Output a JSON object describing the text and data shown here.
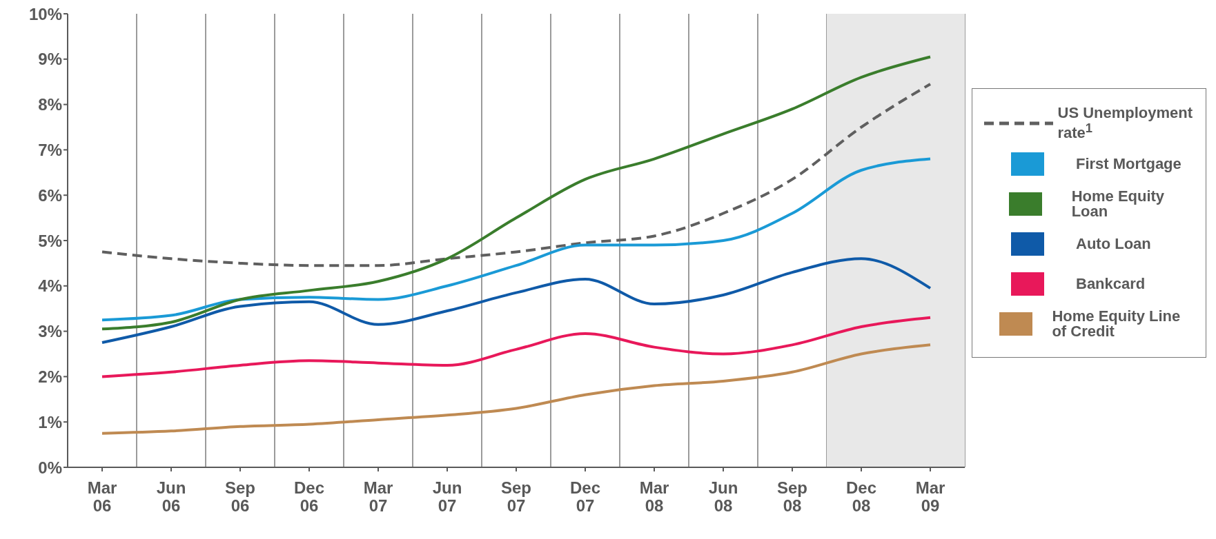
{
  "chart_data": {
    "type": "line",
    "categories": [
      "Mar 06",
      "Jun 06",
      "Sep 06",
      "Dec 06",
      "Mar 07",
      "Jun 07",
      "Sep 07",
      "Dec 07",
      "Mar 08",
      "Jun 08",
      "Sep 08",
      "Dec 08",
      "Mar 09"
    ],
    "series": [
      {
        "name": "US Unemployment rate$^{1}$",
        "color": "#5f5f5f",
        "line_style": "dashed",
        "values": [
          4.75,
          4.6,
          4.5,
          4.45,
          4.45,
          4.6,
          4.75,
          4.95,
          5.1,
          5.6,
          6.35,
          7.5,
          8.45
        ]
      },
      {
        "name": "First Mortgage",
        "color": "#1a9ad6",
        "values": [
          3.25,
          3.35,
          3.7,
          3.75,
          3.7,
          4.0,
          4.45,
          4.9,
          4.9,
          5.0,
          5.6,
          6.55,
          6.8
        ]
      },
      {
        "name": "Home Equity Loan",
        "color": "#3a7d2c",
        "values": [
          3.05,
          3.2,
          3.7,
          3.9,
          4.1,
          4.6,
          5.5,
          6.35,
          6.8,
          7.35,
          7.9,
          8.6,
          9.05
        ]
      },
      {
        "name": "Auto Loan",
        "color": "#0f5aa8",
        "values": [
          2.75,
          3.1,
          3.55,
          3.65,
          3.15,
          3.45,
          3.85,
          4.15,
          3.6,
          3.8,
          4.3,
          4.6,
          3.95
        ]
      },
      {
        "name": "Bankcard",
        "color": "#e8185a",
        "values": [
          2.0,
          2.1,
          2.25,
          2.35,
          2.3,
          2.25,
          2.6,
          2.95,
          2.65,
          2.5,
          2.7,
          3.1,
          3.3
        ]
      },
      {
        "name": "Home Equity Line of Credit",
        "color": "#bf8a52",
        "values": [
          0.75,
          0.8,
          0.9,
          0.95,
          1.05,
          1.15,
          1.3,
          1.6,
          1.8,
          1.9,
          2.1,
          2.5,
          2.7
        ]
      }
    ],
    "ylim": [
      0,
      10
    ],
    "yticks": [
      {
        "value": 0,
        "label": "0%"
      },
      {
        "value": 1,
        "label": "1%"
      },
      {
        "value": 2,
        "label": "2%"
      },
      {
        "value": 3,
        "label": "3%"
      },
      {
        "value": 4,
        "label": "4%"
      },
      {
        "value": 5,
        "label": "5%"
      },
      {
        "value": 6,
        "label": "6%"
      },
      {
        "value": 7,
        "label": "7%"
      },
      {
        "value": 8,
        "label": "8%"
      },
      {
        "value": 9,
        "label": "9%"
      },
      {
        "value": 10,
        "label": "10%"
      }
    ],
    "bands": [
      {
        "axis": "x",
        "from": "Dec 08",
        "to": "Mar 09",
        "color": "#e8e8e8"
      }
    ],
    "grid": "x",
    "legend": "right",
    "marker": "none",
    "line_style": "solid"
  }
}
